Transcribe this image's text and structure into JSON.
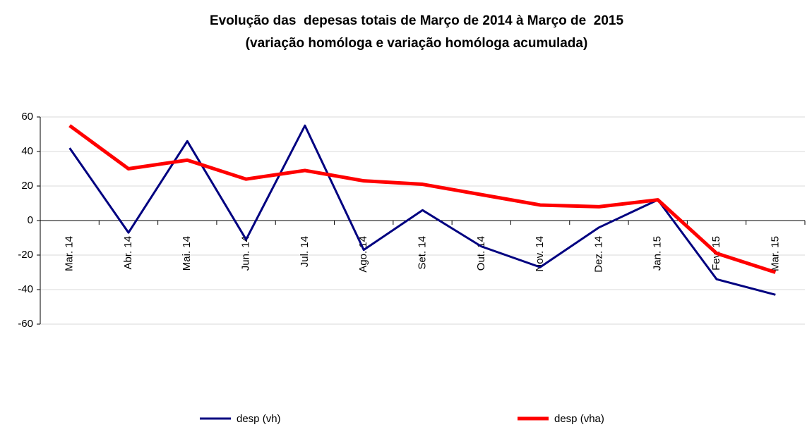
{
  "chart_data": {
    "type": "line",
    "title": "Evolução das  depesas totais de Março de 2014 à Março de  2015",
    "subtitle": "(variação homóloga e variação homóloga acumulada)",
    "categories": [
      "Mar. 14",
      "Abr. 14",
      "Mai. 14",
      "Jun. 14",
      "Jul. 14",
      "Ago. 14",
      "Set. 14",
      "Out. 14",
      "Nov. 14",
      "Dez. 14",
      "Jan. 15",
      "Fev. 15",
      "Mar. 15"
    ],
    "series": [
      {
        "name": "desp (vh)",
        "color": "#000080",
        "values": [
          42,
          -7,
          46,
          -11,
          55,
          -17,
          6,
          -15,
          -27,
          -4,
          12,
          -34,
          -43
        ]
      },
      {
        "name": "desp (vha)",
        "color": "#ff0000",
        "values": [
          55,
          30,
          35,
          24,
          29,
          23,
          21,
          15,
          9,
          8,
          12,
          -19,
          -30
        ]
      }
    ],
    "ylim": [
      -60,
      60
    ],
    "yticks": [
      -60,
      -40,
      -20,
      0,
      20,
      40,
      60
    ],
    "grid": true,
    "legend": "bottom"
  }
}
